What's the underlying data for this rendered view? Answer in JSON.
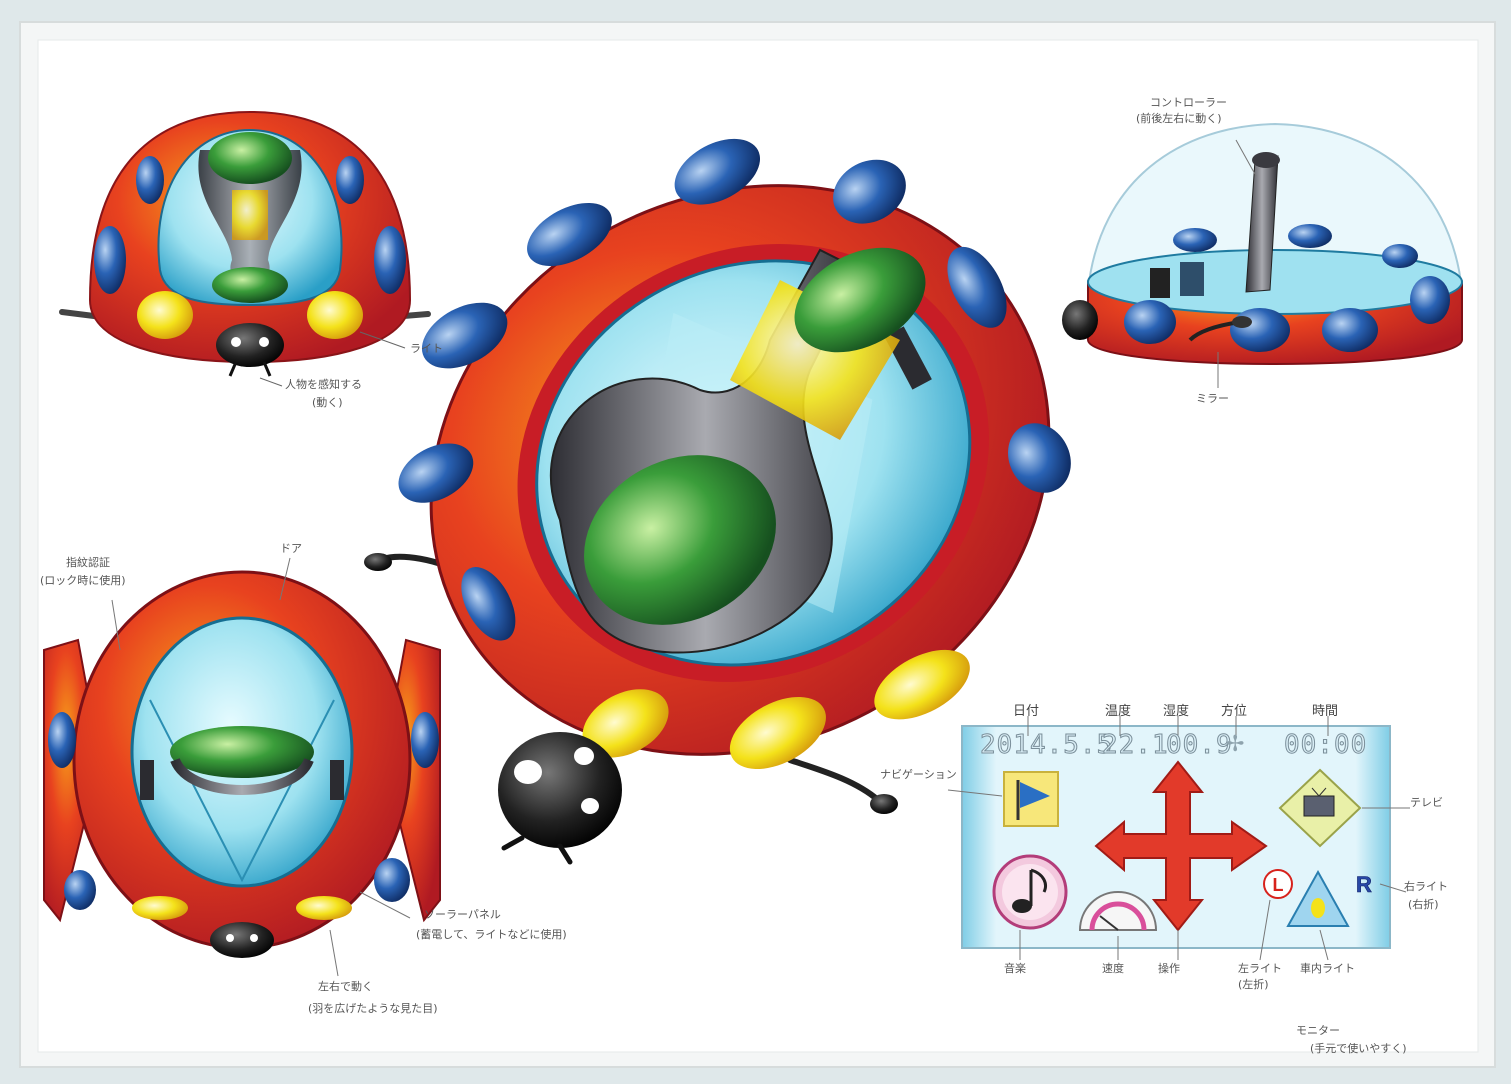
{
  "front_view": {
    "light_label": "ライト",
    "sensor_label_1": "人物を感知する",
    "sensor_label_2": "(動く)"
  },
  "rear_view": {
    "fingerprint_label_1": "指紋認証",
    "fingerprint_label_2": "(ロック時に使用)",
    "door_label": "ドア",
    "solar_label_1": "ソーラーパネル",
    "solar_label_2": "(蓄電して、ライトなどに使用)",
    "wing_label_1": "左右で動く",
    "wing_label_2": "(羽を広げたような見た目)"
  },
  "side_view": {
    "stick_label_1": "コントローラー",
    "stick_label_2": "(前後左右に動く)",
    "mirror_label": "ミラー"
  },
  "monitor": {
    "date_label": "日付",
    "temp_label": "温度",
    "humidity_label": "湿度",
    "direction_label": "方位",
    "time_label": "時間",
    "date_value": "2014.5.5",
    "temp_value": "22.1",
    "humidity_value": "00.9",
    "time_value": "00:00",
    "nav_label": "ナビゲーション",
    "tv_label": "テレビ",
    "right_light_label_1": "右ライト",
    "right_light_label_2": "(右折)",
    "music_label": "音楽",
    "speed_label": "速度",
    "control_label": "操作",
    "left_light_label_1": "左ライト",
    "left_light_label_2": "(左折)",
    "room_light_label": "車内ライト",
    "l_badge": "L",
    "r_badge": "R",
    "caption_1": "モニター",
    "caption_2": "(手元で使いやすく)"
  },
  "colors": {
    "shell_red": "#c8202a",
    "spot_blue": "#1f4f9a",
    "glass_cyan": "#8fdcec",
    "seat_green": "#3a9d3a",
    "lamp_yellow": "#f4e21a",
    "screen_blue": "#bfe6f4"
  }
}
